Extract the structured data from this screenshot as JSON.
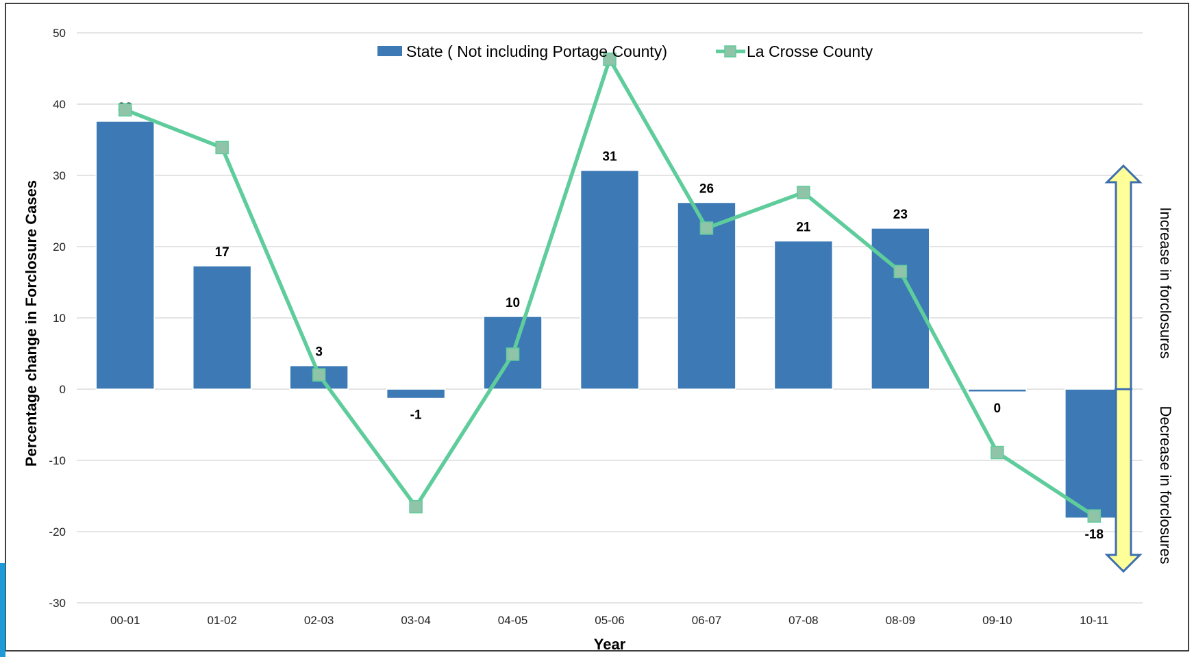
{
  "chart_data": {
    "type": "bar",
    "title": "",
    "xlabel": "Year",
    "ylabel": "Percentage change in Forclosure Cases",
    "ylim": [
      -30,
      50
    ],
    "yticks": [
      50,
      40,
      30,
      20,
      10,
      0,
      -10,
      -20,
      -30
    ],
    "grid": true,
    "legend_placement": "top-center",
    "categories": [
      "00-01",
      "01-02",
      "02-03",
      "03-04",
      "04-05",
      "05-06",
      "06-07",
      "07-08",
      "08-09",
      "09-10",
      "10-11"
    ],
    "series": [
      {
        "name": "State ( Not including Portage County)",
        "type": "bar",
        "color": "#3d7ab5",
        "values": [
          37.6,
          17.3,
          3.3,
          -1.3,
          10.2,
          30.7,
          26.2,
          20.8,
          22.6,
          -0.4,
          -18.1
        ],
        "labels": [
          "38",
          "17",
          "3",
          "-1",
          "10",
          "31",
          "26",
          "21",
          "23",
          "0",
          "-18"
        ]
      },
      {
        "name": "La Crosse County",
        "type": "line",
        "color": "#5ecc9b",
        "marker_color": "#8fc4a8",
        "values": [
          39.2,
          33.9,
          2.0,
          -16.5,
          4.9,
          46.3,
          22.6,
          27.6,
          16.5,
          -8.9,
          -17.8
        ]
      }
    ],
    "annotations": {
      "increase": "Increase in forclosures",
      "decrease": "Decrease in forclosures"
    }
  }
}
